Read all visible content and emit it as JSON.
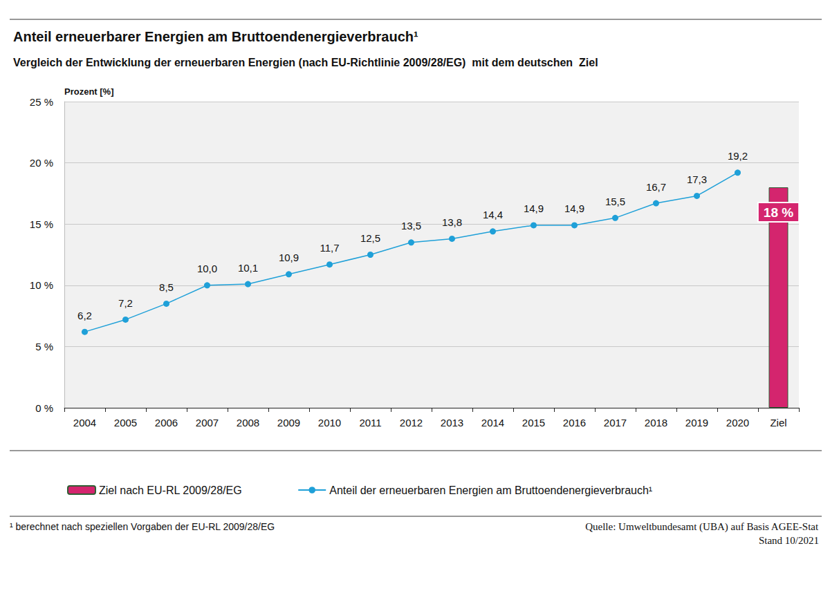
{
  "chart_data": {
    "type": "line",
    "title": "Anteil erneuerbarer Energien am Bruttoendenergieverbrauch¹",
    "subtitle": "Vergleich der Entwicklung der erneuerbaren Energien (nach EU-Richtlinie 2009/28/EG)  mit dem deutschen  Ziel",
    "y_label": "Prozent [%]",
    "annotations": [
      "¹ berechnet nach speziellen Vorgaben der EU-RL 2009/28/EG",
      "Quelle: Umweltbundesamt (UBA) auf Basis AGEE-Stat",
      "Stand 10/2021"
    ],
    "categories": [
      "2004",
      "2005",
      "2006",
      "2007",
      "2008",
      "2009",
      "2010",
      "2011",
      "2012",
      "2013",
      "2014",
      "2015",
      "2016",
      "2017",
      "2018",
      "2019",
      "2020",
      "Ziel"
    ],
    "series": [
      {
        "name": "Ziel nach EU-RL 2009/28/EG",
        "type": "bar",
        "color": "#d4256e",
        "values": [
          null,
          null,
          null,
          null,
          null,
          null,
          null,
          null,
          null,
          null,
          null,
          null,
          null,
          null,
          null,
          null,
          null,
          18
        ],
        "value_labels": [
          null,
          null,
          null,
          null,
          null,
          null,
          null,
          null,
          null,
          null,
          null,
          null,
          null,
          null,
          null,
          null,
          null,
          "18 %"
        ]
      },
      {
        "name": "Anteil der erneuerbaren Energien am Bruttoendenergieverbrauch¹",
        "type": "line",
        "color": "#1fa0d8",
        "marker": "circle",
        "values": [
          6.2,
          7.2,
          8.5,
          10.0,
          10.1,
          10.9,
          11.7,
          12.5,
          13.5,
          13.8,
          14.4,
          14.9,
          14.9,
          15.5,
          16.7,
          17.3,
          19.2,
          null
        ],
        "value_labels": [
          "6,2",
          "7,2",
          "8,5",
          "10,0",
          "10,1",
          "10,9",
          "11,7",
          "12,5",
          "13,5",
          "13,8",
          "14,4",
          "14,9",
          "14,9",
          "15,5",
          "16,7",
          "17,3",
          "19,2",
          null
        ]
      }
    ],
    "ylim": [
      0,
      25
    ],
    "yticks": [
      {
        "value": 0,
        "label": "0 %"
      },
      {
        "value": 5,
        "label": "5 %"
      },
      {
        "value": 10,
        "label": "10 %"
      },
      {
        "value": 15,
        "label": "15 %"
      },
      {
        "value": 20,
        "label": "20 %"
      },
      {
        "value": 25,
        "label": "25 %"
      }
    ],
    "grid": true,
    "legend": "bottom",
    "data_labels": true
  }
}
